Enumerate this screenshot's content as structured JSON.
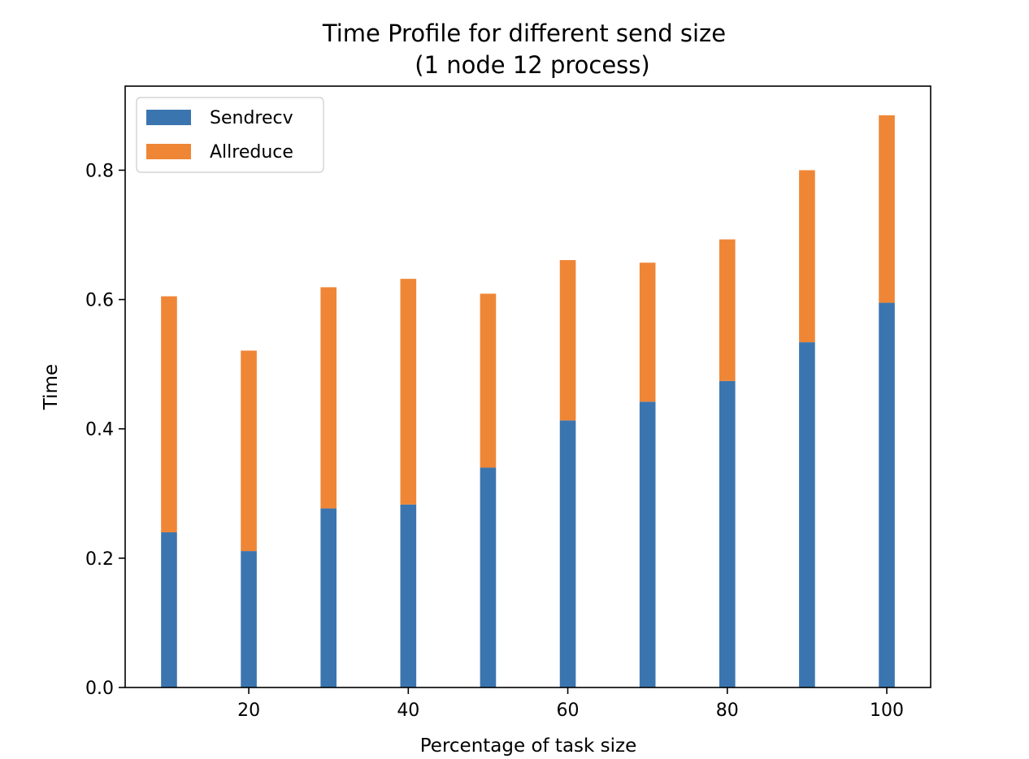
{
  "chart_data": {
    "type": "bar",
    "stacked": true,
    "title_line1": "Time Profile for different send size",
    "title_line2": "(1 node 12 process)",
    "xlabel": "Percentage of task size",
    "ylabel": "Time",
    "x": [
      10,
      20,
      30,
      40,
      50,
      60,
      70,
      80,
      90,
      100
    ],
    "bar_width": 2,
    "xlim": [
      4.5,
      105.5
    ],
    "ylim": [
      0,
      0.93
    ],
    "xticks": [
      20,
      40,
      60,
      80,
      100
    ],
    "yticks": [
      0.0,
      0.2,
      0.4,
      0.6,
      0.8
    ],
    "ytick_labels": [
      "0.0",
      "0.2",
      "0.4",
      "0.6",
      "0.8"
    ],
    "grid": false,
    "legend_position": "top-left",
    "series": [
      {
        "name": "Sendrecv",
        "color": "#3b75af",
        "values": [
          0.24,
          0.211,
          0.277,
          0.283,
          0.34,
          0.413,
          0.442,
          0.474,
          0.534,
          0.595
        ]
      },
      {
        "name": "Allreduce",
        "color": "#ef8636",
        "values": [
          0.365,
          0.31,
          0.342,
          0.349,
          0.269,
          0.248,
          0.215,
          0.219,
          0.266,
          0.29
        ]
      }
    ]
  }
}
